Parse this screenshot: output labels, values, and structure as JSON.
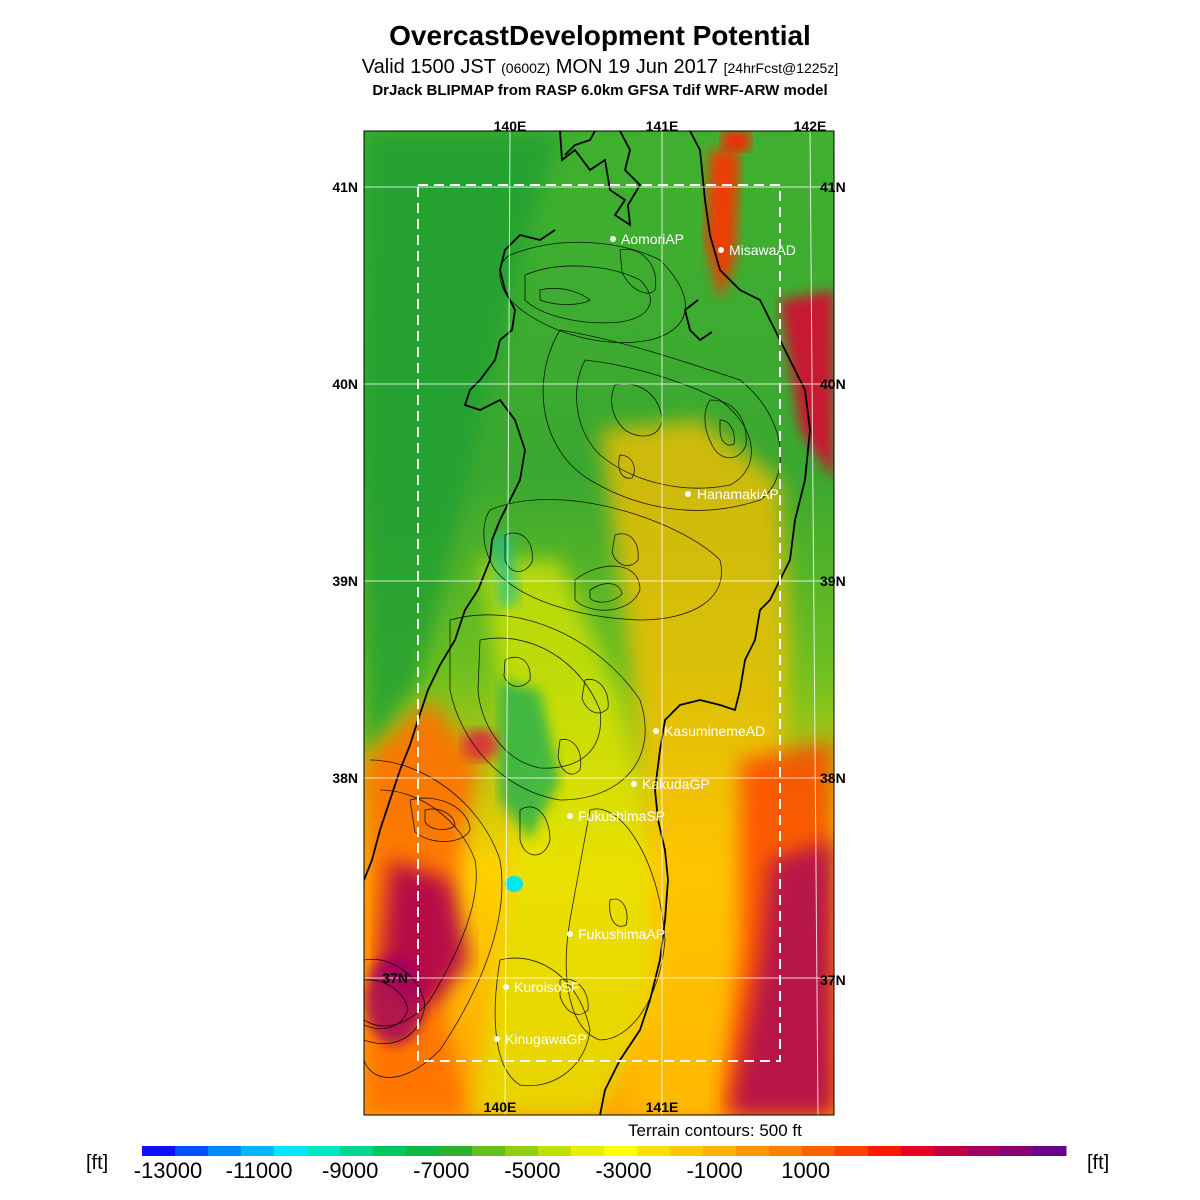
{
  "header": {
    "title": "OvercastDevelopment Potential",
    "valid_prefix": "Valid 1500 JST",
    "valid_zulu": "(0600Z)",
    "valid_date": "MON 19 Jun 2017",
    "forecast": "[24hrFcst@1225z]",
    "model": "DrJack BLIPMAP from RASP 6.0km GFSA Tdif WRF-ARW model"
  },
  "map": {
    "lon_labels_top": [
      "140E",
      "141E",
      "142E"
    ],
    "lon_labels_bottom": [
      "140E",
      "141E"
    ],
    "lat_labels_left": [
      "41N",
      "40N",
      "39N",
      "38N",
      "37N"
    ],
    "lat_labels_right": [
      "41N",
      "40N",
      "39N",
      "38N",
      "37N"
    ],
    "stations": [
      "AomoriAP",
      "MisawaAD",
      "HanamakiAP",
      "KasuminemeAD",
      "KakudaGP",
      "FukushimaSP",
      "FukushimaAP",
      "KuroisoSF",
      "KinugawaGP"
    ],
    "terrain_note": "Terrain contours: 500 ft"
  },
  "colorbar": {
    "unit_left": "[ft]",
    "unit_right": "[ft]",
    "tick_labels": [
      "-13000",
      "-11000",
      "-9000",
      "-7000",
      "-5000",
      "-3000",
      "-1000",
      "1000"
    ],
    "colors": [
      "#1010ff",
      "#0050ff",
      "#0088ff",
      "#00b8ff",
      "#00e8ff",
      "#00e8c8",
      "#00d890",
      "#00c860",
      "#10b840",
      "#30b030",
      "#60c020",
      "#90d010",
      "#c0e000",
      "#e8f000",
      "#ffff00",
      "#ffe000",
      "#ffc800",
      "#ffb000",
      "#ff9800",
      "#ff8000",
      "#ff6000",
      "#ff4000",
      "#ff1800",
      "#e80020",
      "#c00040",
      "#a00060",
      "#880078",
      "#68008a"
    ]
  }
}
